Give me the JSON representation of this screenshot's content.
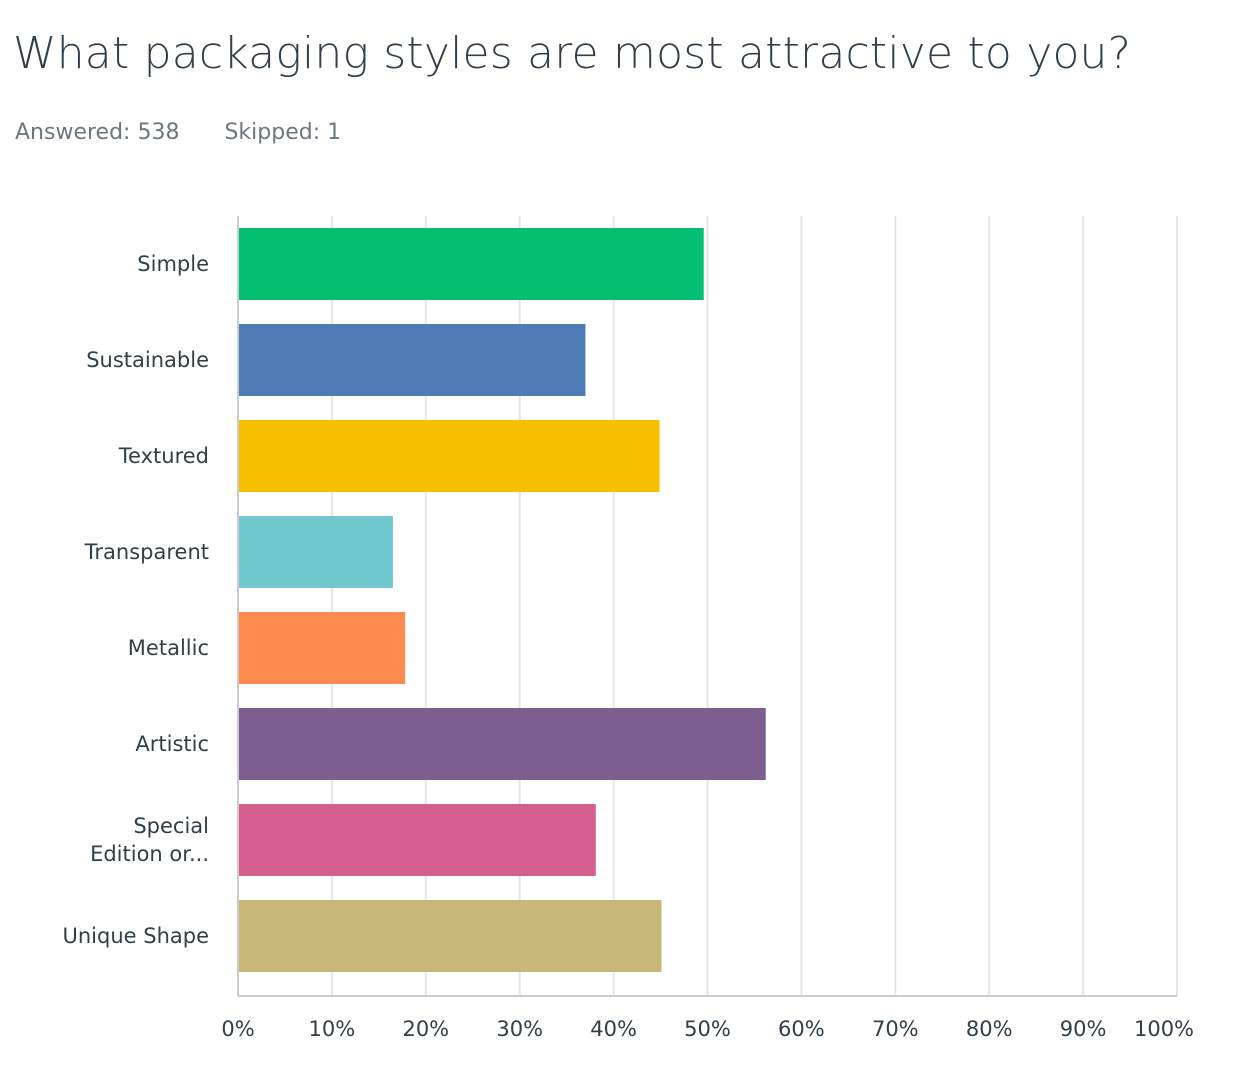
{
  "question": {
    "title": "What packaging styles are most attractive to you?",
    "answered_label": "Answered:",
    "answered_value": "538",
    "skipped_label": "Skipped:",
    "skipped_value": "1"
  },
  "chart_data": {
    "type": "bar",
    "orientation": "horizontal",
    "title": "",
    "xlabel": "",
    "ylabel": "",
    "xlim": [
      0,
      100
    ],
    "grid": true,
    "x_ticks": [
      "0%",
      "10%",
      "20%",
      "30%",
      "40%",
      "50%",
      "60%",
      "70%",
      "80%",
      "90%",
      "100%"
    ],
    "categories": [
      [
        "Simple"
      ],
      [
        "Sustainable"
      ],
      [
        "Textured"
      ],
      [
        "Transparent"
      ],
      [
        "Metallic"
      ],
      [
        "Artistic"
      ],
      [
        "Special",
        "Edition or..."
      ],
      [
        "Unique Shape"
      ]
    ],
    "values": [
      49.6,
      37.0,
      44.9,
      16.5,
      17.8,
      56.2,
      38.1,
      45.1
    ],
    "colors": [
      "#05bf72",
      "#507cb6",
      "#f7bf00",
      "#6ec8cd",
      "#ff8b4f",
      "#7d5e8f",
      "#d45f8e",
      "#c7b879"
    ]
  }
}
